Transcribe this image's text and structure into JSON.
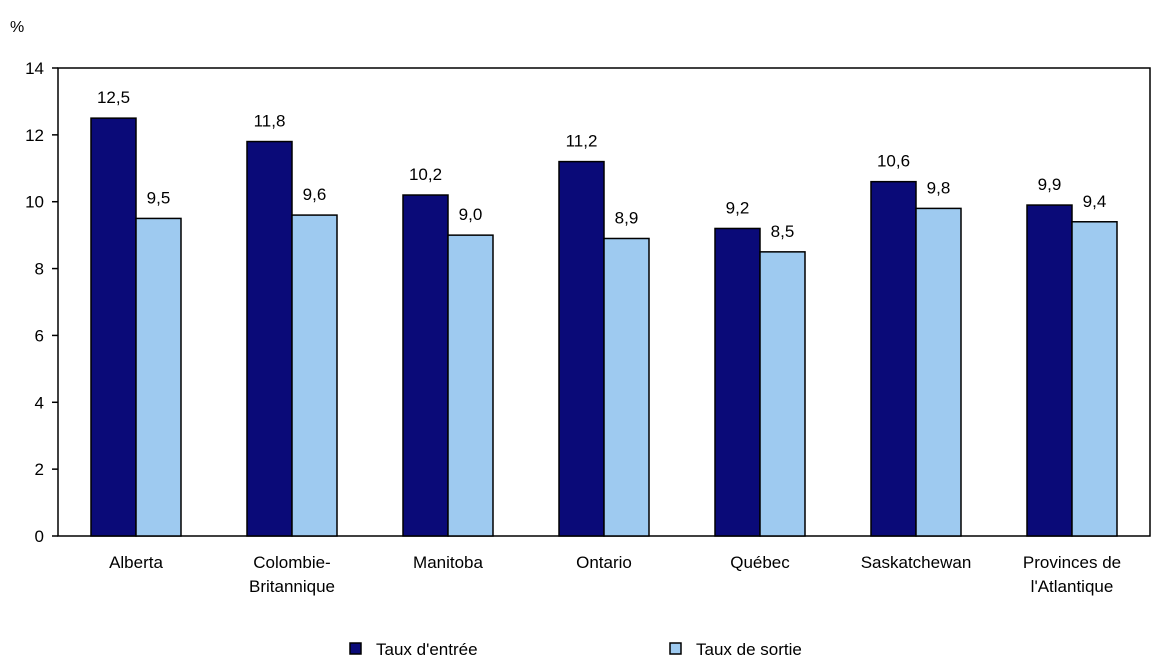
{
  "chart_data": {
    "type": "bar",
    "title": "",
    "xlabel": "",
    "ylabel": "%",
    "ylim": [
      0,
      14
    ],
    "yticks": [
      0,
      2,
      4,
      6,
      8,
      10,
      12,
      14
    ],
    "grid": false,
    "legend_position": "bottom",
    "categories": [
      [
        "Alberta"
      ],
      [
        "Colombie-",
        "Britannique"
      ],
      [
        "Manitoba"
      ],
      [
        "Ontario"
      ],
      [
        "Québec"
      ],
      [
        "Saskatchewan"
      ],
      [
        "Provinces de",
        "l'Atlantique"
      ]
    ],
    "series": [
      {
        "name": "Taux d'entrée",
        "color": "#0a0a78",
        "values": [
          12.5,
          11.8,
          10.2,
          11.2,
          9.2,
          10.6,
          9.9
        ],
        "labels": [
          "12,5",
          "11,8",
          "10,2",
          "11,2",
          "9,2",
          "10,6",
          "9,9"
        ]
      },
      {
        "name": "Taux de sortie",
        "color": "#9ecaf0",
        "values": [
          9.5,
          9.6,
          9.0,
          8.9,
          8.5,
          9.8,
          9.4
        ],
        "labels": [
          "9,5",
          "9,6",
          "9,0",
          "8,9",
          "8,5",
          "9,8",
          "9,4"
        ]
      }
    ]
  }
}
